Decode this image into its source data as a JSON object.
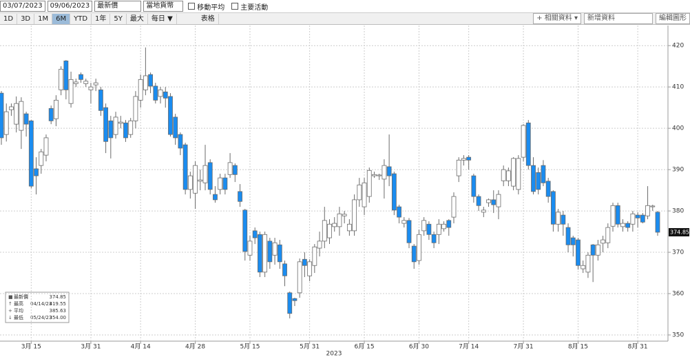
{
  "toolbar": {
    "start_date": "03/07/2023",
    "end_date": "09/06/2023",
    "price_field": "最新價",
    "currency": "當地貨幣",
    "checkboxes": [
      "移動平均",
      "主要活動"
    ],
    "ranges": [
      "1D",
      "3D",
      "1M",
      "6M",
      "YTD",
      "1年",
      "5Y",
      "最大",
      "每日 ▼"
    ],
    "active_range": 3,
    "table": "表格",
    "related": "+ 相關資料 ▾",
    "add_data": "新增資料",
    "edit": "編輯圖形"
  },
  "legend": [
    {
      "label": "最新價",
      "date": "",
      "value": "374.85"
    },
    {
      "label": "最高",
      "date": "04/14/23",
      "value": "419.55"
    },
    {
      "label": "平均",
      "date": "",
      "value": "385.63"
    },
    {
      "label": "最低",
      "date": "05/24/23",
      "value": "354.00"
    }
  ],
  "chart_data": {
    "type": "candlestick",
    "x_sublabel": "2023",
    "up_color": "#ffffff",
    "down_color": "#1a8cf0",
    "outline_color": "#6a6a6a",
    "categories": [
      null,
      null,
      null,
      null,
      null,
      null,
      "3月 15",
      null,
      null,
      null,
      null,
      null,
      null,
      null,
      null,
      null,
      null,
      null,
      "3月 31",
      null,
      null,
      null,
      null,
      null,
      null,
      null,
      null,
      null,
      "4月 14",
      null,
      null,
      null,
      null,
      null,
      null,
      null,
      null,
      null,
      null,
      "4月 28",
      null,
      null,
      null,
      null,
      null,
      null,
      null,
      null,
      null,
      null,
      "5月 15",
      null,
      null,
      null,
      null,
      null,
      null,
      null,
      null,
      null,
      null,
      null,
      "5月 31",
      null,
      null,
      null,
      null,
      null,
      null,
      null,
      null,
      null,
      null,
      "6月 15",
      null,
      null,
      null,
      null,
      null,
      null,
      null,
      null,
      null,
      null,
      "6月 30",
      null,
      null,
      null,
      null,
      null,
      null,
      null,
      null,
      null,
      "7月 14",
      null,
      null,
      null,
      null,
      null,
      null,
      null,
      null,
      null,
      null,
      "7月 31",
      null,
      null,
      null,
      null,
      null,
      null,
      null,
      null,
      null,
      null,
      "8月 15",
      null,
      null,
      null,
      null,
      null,
      null,
      null,
      null,
      null,
      null,
      null,
      "8月 31",
      null,
      null,
      null,
      null
    ],
    "open": [
      408.5,
      398.5,
      404.5,
      401,
      399.5,
      403.5,
      401.8,
      390.2,
      391,
      393.5,
      404.8,
      402.3,
      409.3,
      416.3,
      406,
      410.8,
      413,
      410.8,
      409.3,
      410.5,
      409.3,
      405,
      401.8,
      398.5,
      401.2,
      401.3,
      398.5,
      401.8,
      406.8,
      409.3,
      413,
      410.2,
      407.7,
      408.8,
      407.7,
      402.7,
      398.5,
      396,
      385.2,
      384.3,
      387.2,
      386.8,
      391.7,
      384,
      385.2,
      388,
      388.8,
      391,
      384.7,
      380.2,
      369.3,
      375.2,
      374.3,
      365.2,
      372.7,
      369.3,
      371.8,
      367.2,
      360.2,
      358.8,
      360.2,
      368.3,
      364.3,
      366.8,
      371,
      372.7,
      373.5,
      376.2,
      376.2,
      378.8,
      375.2,
      375.2,
      382.7,
      381,
      383.5,
      388.5,
      388.5,
      387.7,
      390.7,
      389,
      381,
      377,
      377.7,
      371.5,
      368,
      375.2,
      376.8,
      374.3,
      374.3,
      375.7,
      377.7,
      378.5,
      388.5,
      392.3,
      393,
      388.5,
      383.5,
      379.7,
      382,
      382.7,
      381,
      387.3,
      387.3,
      386,
      385.2,
      393,
      401.3,
      391,
      389.3,
      391,
      387.2,
      384.7,
      376.8,
      379,
      376,
      373.5,
      373,
      366,
      365.2,
      371.8,
      369.3,
      372.2,
      372.3,
      376.3,
      381.3,
      376.2,
      377,
      376.8,
      379,
      379,
      378.8,
      381,
      379.7
    ],
    "high": [
      409,
      406,
      406,
      407.7,
      407.5,
      404,
      402,
      393,
      395,
      398.5,
      405.5,
      408,
      415,
      416.5,
      413.7,
      412,
      413.5,
      412,
      411,
      412,
      410,
      406,
      403,
      404,
      403,
      402,
      402.5,
      409,
      413,
      419.55,
      413.5,
      411,
      410,
      410,
      408.5,
      403.5,
      399,
      396.5,
      389.5,
      392,
      390,
      396,
      392.5,
      386,
      389,
      389,
      394,
      391.5,
      386.5,
      380.5,
      374,
      376,
      375,
      375,
      373.5,
      373.5,
      373,
      368,
      360.5,
      359,
      368.5,
      370,
      368.3,
      372,
      375,
      381,
      378,
      378.5,
      381,
      380,
      378,
      384,
      388,
      388,
      390.5,
      389.5,
      389,
      392.5,
      398.5,
      389.5,
      381.5,
      378.5,
      378.3,
      372,
      375.5,
      378.5,
      377.5,
      375,
      378,
      377.5,
      378,
      384.5,
      393,
      393.5,
      393.5,
      389,
      384,
      381,
      383,
      385,
      385,
      391,
      390.5,
      393,
      393.5,
      401,
      402,
      393,
      390.5,
      392.3,
      388,
      385,
      380.5,
      380,
      377,
      374,
      373.5,
      368,
      370,
      372,
      373,
      374,
      377,
      382,
      382,
      378,
      377.5,
      380,
      379.7,
      379.5,
      386,
      381.5,
      380
    ],
    "low": [
      396,
      396.8,
      403,
      399,
      395,
      398,
      385.5,
      384,
      389,
      392,
      401,
      400.5,
      408,
      407,
      405,
      410,
      411,
      410,
      406,
      409,
      403,
      394,
      392.7,
      397.5,
      400,
      396.7,
      397.7,
      400,
      405,
      408,
      408.5,
      406,
      406,
      405,
      398,
      396,
      393.5,
      384,
      383,
      380.5,
      385,
      385,
      384,
      382,
      384,
      384,
      388,
      387,
      381,
      368,
      368,
      372,
      364,
      364,
      366,
      367,
      366,
      361.8,
      354,
      357,
      359,
      364,
      363,
      365,
      369,
      371,
      372,
      375,
      374,
      377,
      374,
      374,
      381,
      379,
      382,
      388,
      387.5,
      383,
      386,
      379,
      377,
      376,
      371,
      366,
      367,
      374,
      373,
      371,
      372,
      375,
      374,
      377,
      387,
      391,
      390,
      382,
      380,
      378.5,
      381,
      379.5,
      378,
      386,
      386,
      385,
      384,
      392,
      390,
      384,
      384,
      386,
      382,
      375,
      375,
      374,
      370,
      369,
      365.8,
      365,
      363.8,
      362.8,
      368,
      370,
      371,
      375,
      376,
      375,
      375,
      375,
      376,
      377,
      378,
      380,
      374
    ],
    "close": [
      397.7,
      404,
      405.2,
      406,
      406.5,
      401,
      386,
      388.5,
      394.3,
      397.7,
      401.8,
      406.8,
      414.3,
      409.3,
      411.8,
      411.2,
      411.8,
      411.4,
      410,
      411,
      404.3,
      396.8,
      397.7,
      402.7,
      401.5,
      397.7,
      401.8,
      407.7,
      411.8,
      412.7,
      410.2,
      406.8,
      409.3,
      407.3,
      398.5,
      397.7,
      395.2,
      385.2,
      388.5,
      391,
      387.5,
      391,
      385.2,
      382.7,
      388,
      385.2,
      391.7,
      388.8,
      382.3,
      370.2,
      372.7,
      373.5,
      365.2,
      374.3,
      367.7,
      372.3,
      367.7,
      364.3,
      355.2,
      358.3,
      367.7,
      366.8,
      367.7,
      371.3,
      372.7,
      377.7,
      376.8,
      377,
      379.3,
      379.2,
      376.8,
      382.7,
      386.3,
      386.8,
      389.8,
      388.8,
      388.7,
      391,
      388.5,
      380.2,
      378.5,
      377.7,
      372.3,
      367.7,
      374.3,
      377.7,
      374.3,
      372.3,
      376.8,
      376.8,
      376,
      383.5,
      392.3,
      392.7,
      392.3,
      383.5,
      381.3,
      380.2,
      382.7,
      381.5,
      384,
      390,
      389.7,
      392.7,
      392.7,
      400.7,
      391,
      384.7,
      385.2,
      386.8,
      383.5,
      376.8,
      379.7,
      376.8,
      371.8,
      371.8,
      366.8,
      366.8,
      369.3,
      369.3,
      371.8,
      373,
      376,
      381.3,
      376.8,
      377,
      376,
      379.3,
      378.3,
      377.3,
      381.3,
      381.2,
      374.85
    ],
    "ylim": [
      348.5,
      424.7
    ],
    "yticks": [
      350,
      360,
      370,
      380,
      390,
      400,
      410,
      420
    ],
    "grid": true
  }
}
